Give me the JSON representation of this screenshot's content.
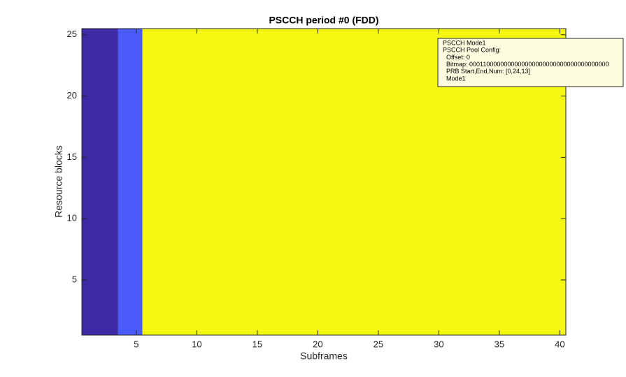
{
  "chart_data": {
    "type": "image",
    "title": "PSCCH period #0 (FDD)",
    "x_label": "Subframes",
    "y_label": "Resource blocks",
    "xlim": [
      0.5,
      40.5
    ],
    "ylim": [
      0.5,
      25.5
    ],
    "xticks": [
      5,
      10,
      15,
      20,
      25,
      30,
      35,
      40
    ],
    "yticks": [
      5,
      10,
      15,
      20,
      25
    ],
    "regions": [
      {
        "x0": 0.5,
        "x1": 3.5,
        "color": "#3e28a4"
      },
      {
        "x0": 3.5,
        "x1": 5.5,
        "color": "#4a5bf9"
      },
      {
        "x0": 5.5,
        "x1": 40.5,
        "color": "#f5f811"
      }
    ],
    "annotation": [
      "PSCCH Mode1",
      "PSCCH Pool Config:",
      "Offset: 0",
      "Bitmap: 0001100000000000000000000000000000000000",
      "PRB Start,End,Num: [0,24,13]",
      "Mode1"
    ]
  }
}
